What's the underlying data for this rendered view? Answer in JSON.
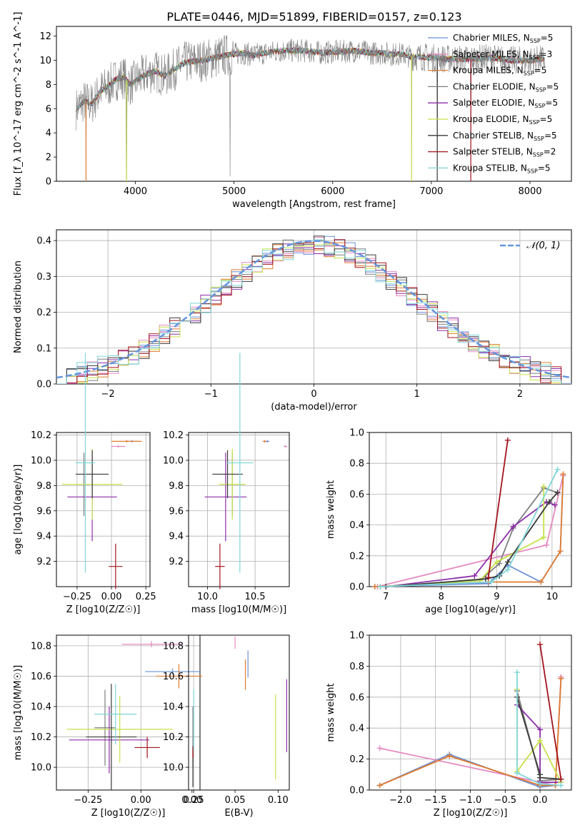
{
  "figure_title": "PLATE=0446, MJD=51899, FIBERID=0157, z=0.123",
  "palette": {
    "Chabrier MILES": "#6b8fd8",
    "Salpeter MILES": "#e58ac0",
    "Kroupa MILES": "#e07b2e",
    "Chabrier ELODIE": "#7f7f7f",
    "Salpeter ELODIE": "#8c2ea8",
    "Kroupa ELODIE": "#c5e24a",
    "Chabrier STELIB": "#3a3a3a",
    "Salpeter STELIB": "#a3131d",
    "Kroupa STELIB": "#7fd6d8",
    "normal_curve": "#6495dc",
    "grid": "#b0b0b0"
  },
  "chart_data": [
    {
      "type": "line",
      "panel": "spectrum",
      "xlabel": "wavelength [Angstrom, rest frame]",
      "ylabel": "Flux [f_λ 10^-17 erg cm^-2 s^-1 A^-1]",
      "xlim": [
        3200,
        8420
      ],
      "ylim": [
        0,
        12.8
      ],
      "xticks": [
        4000,
        5000,
        6000,
        7000,
        8000
      ],
      "yticks": [
        0,
        2,
        4,
        6,
        8,
        10,
        12
      ],
      "grid": false,
      "legend_position": "top-right",
      "legend": [
        {
          "main": "Chabrier MILES, N",
          "sub": "SSP",
          "tail": "=5"
        },
        {
          "main": "Salpeter MILES, N",
          "sub": "SSP",
          "tail": "=3"
        },
        {
          "main": "Kroupa MILES, N",
          "sub": "SSP",
          "tail": "=5"
        },
        {
          "main": "Chabrier ELODIE, N",
          "sub": "SSP",
          "tail": "=5"
        },
        {
          "main": "Salpeter ELODIE, N",
          "sub": "SSP",
          "tail": "=5"
        },
        {
          "main": "Kroupa ELODIE, N",
          "sub": "SSP",
          "tail": "=5"
        },
        {
          "main": "Chabrier STELIB, N",
          "sub": "SSP",
          "tail": "=5"
        },
        {
          "main": "Salpeter STELIB, N",
          "sub": "SSP",
          "tail": "=2"
        },
        {
          "main": "Kroupa STELIB, N",
          "sub": "SSP",
          "tail": "=5"
        }
      ],
      "continuum": [
        [
          3400,
          6.0
        ],
        [
          3480,
          6.6
        ],
        [
          3560,
          6.4
        ],
        [
          3650,
          7.5
        ],
        [
          3720,
          7.8
        ],
        [
          3800,
          8.4
        ],
        [
          3880,
          8.6
        ],
        [
          3950,
          8.0
        ],
        [
          4000,
          8.3
        ],
        [
          4100,
          8.8
        ],
        [
          4200,
          9.1
        ],
        [
          4300,
          8.7
        ],
        [
          4400,
          9.3
        ],
        [
          4500,
          9.8
        ],
        [
          4600,
          9.9
        ],
        [
          4700,
          10.0
        ],
        [
          4800,
          10.2
        ],
        [
          4900,
          10.4
        ],
        [
          5000,
          10.5
        ],
        [
          5100,
          10.6
        ],
        [
          5200,
          10.4
        ],
        [
          5300,
          10.6
        ],
        [
          5400,
          10.7
        ],
        [
          5500,
          10.8
        ],
        [
          5600,
          10.8
        ],
        [
          5700,
          10.8
        ],
        [
          5800,
          10.7
        ],
        [
          5900,
          10.6
        ],
        [
          6000,
          10.7
        ],
        [
          6100,
          10.7
        ],
        [
          6200,
          10.8
        ],
        [
          6300,
          10.7
        ],
        [
          6400,
          10.6
        ],
        [
          6500,
          10.6
        ],
        [
          6600,
          10.5
        ],
        [
          6700,
          10.5
        ],
        [
          6800,
          10.3
        ],
        [
          6900,
          10.3
        ],
        [
          7000,
          10.2
        ],
        [
          7200,
          10.1
        ],
        [
          7400,
          10.1
        ],
        [
          7600,
          10.2
        ],
        [
          7800,
          10.0
        ],
        [
          8000,
          10.0
        ],
        [
          8150,
          10.1
        ]
      ],
      "data_range": [
        3400,
        8150
      ],
      "deep_drops": [
        [
          3500,
          0
        ],
        [
          3910,
          0
        ],
        [
          4960,
          0.4
        ],
        [
          6800,
          0
        ],
        [
          7060,
          0
        ],
        [
          7400,
          0
        ]
      ]
    },
    {
      "type": "line",
      "panel": "residual-histogram",
      "xlabel": "(data-model)/error",
      "ylabel": "Normed distribution",
      "xlim": [
        -2.5,
        2.5
      ],
      "ylim": [
        0,
        0.43
      ],
      "xticks": [
        -2,
        -1,
        0,
        1,
        2
      ],
      "xtick_labels": [
        "−2",
        "−1",
        "0",
        "1",
        "2"
      ],
      "yticks": [
        0,
        0.1,
        0.2,
        0.3,
        0.4
      ],
      "ytick_labels": [
        "0.0",
        "0.1",
        "0.2",
        "0.3",
        "0.4"
      ],
      "grid": true,
      "legend_position": "top-right",
      "legend": [
        "𝒩(0, 1)"
      ],
      "normal_curve": {
        "mu": 0,
        "sigma": 1
      },
      "bin_width": 0.1,
      "bin_start": -2.5,
      "hist_bins": 50
    },
    {
      "type": "scatter",
      "panel": "age-vs-metallicity",
      "xlabel": "Z [log10(Z/Z☉)]",
      "ylabel": "age [log10(age/yr)]",
      "xlim": [
        -0.4,
        0.28
      ],
      "ylim": [
        9.0,
        10.22
      ],
      "xticks": [
        -0.25,
        0.0,
        0.25
      ],
      "xtick_labels": [
        "−0.25",
        "0.00",
        "0.25"
      ],
      "yticks": [
        9.2,
        9.4,
        9.6,
        9.8,
        10.0,
        10.2
      ],
      "ytick_labels": [
        "9.2",
        "9.4",
        "9.6",
        "9.8",
        "10.0",
        "10.2"
      ],
      "grid": true,
      "points": [
        {
          "model": "Chabrier MILES",
          "x": 0.15,
          "xerr": 0.04,
          "y": 10.15,
          "yerr": 0.01
        },
        {
          "model": "Salpeter MILES",
          "x": 0.05,
          "xerr": 0.05,
          "y": 10.11,
          "yerr": 0.01
        },
        {
          "model": "Kroupa MILES",
          "x": 0.11,
          "xerr": 0.11,
          "y": 10.15,
          "yerr": 0.01
        },
        {
          "model": "Chabrier ELODIE",
          "x": -0.2,
          "xerr": 0.04,
          "y": 9.81,
          "yerr": 0.25
        },
        {
          "model": "Salpeter ELODIE",
          "x": -0.14,
          "xerr": 0.18,
          "y": 9.71,
          "yerr": 0.35
        },
        {
          "model": "Kroupa ELODIE",
          "x": -0.14,
          "xerr": 0.22,
          "y": 9.81,
          "yerr": 0.28
        },
        {
          "model": "Chabrier STELIB",
          "x": -0.14,
          "xerr": 0.12,
          "y": 9.89,
          "yerr": 0.19
        },
        {
          "model": "Salpeter STELIB",
          "x": 0.03,
          "xerr": 0.05,
          "y": 9.16,
          "yerr": 0.18
        },
        {
          "model": "Kroupa STELIB",
          "x": -0.19,
          "xerr": 0.07,
          "y": 9.98,
          "yerr": 0.87
        }
      ]
    },
    {
      "type": "scatter",
      "panel": "age-vs-mass",
      "xlabel": "mass [log10(M/M☉)]",
      "ylabel": "",
      "xlim": [
        9.8,
        10.86
      ],
      "ylim": [
        9.0,
        10.22
      ],
      "xticks": [
        10.0,
        10.5
      ],
      "xtick_labels": [
        "10.0",
        "10.5"
      ],
      "yticks": [
        9.2,
        9.4,
        9.6,
        9.8,
        10.0,
        10.2
      ],
      "ytick_labels": [
        "9.2",
        "9.4",
        "9.6",
        "9.8",
        "10.0",
        "10.2"
      ],
      "grid": true,
      "points": [
        {
          "model": "Chabrier MILES",
          "x": 10.63,
          "xerr": 0.02,
          "y": 10.15,
          "yerr": 0.01
        },
        {
          "model": "Salpeter MILES",
          "x": 10.82,
          "xerr": 0.02,
          "y": 10.11,
          "yerr": 0.01
        },
        {
          "model": "Kroupa MILES",
          "x": 10.6,
          "xerr": 0.02,
          "y": 10.15,
          "yerr": 0.01
        },
        {
          "model": "Chabrier ELODIE",
          "x": 10.26,
          "xerr": 0.13,
          "y": 9.81,
          "yerr": 0.25
        },
        {
          "model": "Salpeter ELODIE",
          "x": 10.19,
          "xerr": 0.22,
          "y": 9.71,
          "yerr": 0.35
        },
        {
          "model": "Kroupa ELODIE",
          "x": 10.26,
          "xerr": 0.14,
          "y": 9.81,
          "yerr": 0.28
        },
        {
          "model": "Chabrier STELIB",
          "x": 10.21,
          "xerr": 0.16,
          "y": 9.89,
          "yerr": 0.19
        },
        {
          "model": "Salpeter STELIB",
          "x": 10.13,
          "xerr": 0.05,
          "y": 9.16,
          "yerr": 0.18
        },
        {
          "model": "Kroupa STELIB",
          "x": 10.34,
          "xerr": 0.14,
          "y": 9.98,
          "yerr": 0.87
        }
      ]
    },
    {
      "type": "line",
      "panel": "mass-weight-vs-age",
      "xlabel": "age [log10(age/yr)]",
      "ylabel": "mass weight",
      "xlim": [
        6.7,
        10.35
      ],
      "ylim": [
        0,
        1.0
      ],
      "xticks": [
        7,
        8,
        9,
        10
      ],
      "xtick_labels": [
        "7",
        "8",
        "9",
        "10"
      ],
      "yticks": [
        0,
        0.2,
        0.4,
        0.6,
        0.8,
        1.0
      ],
      "ytick_labels": [
        "0.0",
        "0.2",
        "0.4",
        "0.6",
        "0.8",
        "1.0"
      ],
      "grid": true,
      "series": [
        {
          "model": "Chabrier MILES",
          "x": [
            6.8,
            8.85,
            9.2,
            9.8,
            10.15,
            10.2
          ],
          "y": [
            0.0,
            0.02,
            0.14,
            0.03,
            0.23,
            0.72
          ]
        },
        {
          "model": "Salpeter MILES",
          "x": [
            6.85,
            9.9,
            10.2
          ],
          "y": [
            0.0,
            0.27,
            0.72
          ]
        },
        {
          "model": "Kroupa MILES",
          "x": [
            6.8,
            8.85,
            9.8,
            10.15,
            10.2
          ],
          "y": [
            0.0,
            0.03,
            0.03,
            0.23,
            0.73
          ]
        },
        {
          "model": "Chabrier ELODIE",
          "x": [
            6.9,
            8.7,
            9.05,
            9.3,
            9.85,
            10.1
          ],
          "y": [
            0.0,
            0.04,
            0.15,
            0.38,
            0.64,
            0.61
          ]
        },
        {
          "model": "Salpeter ELODIE",
          "x": [
            7.0,
            8.6,
            9.3,
            9.9,
            10.05
          ],
          "y": [
            0.0,
            0.07,
            0.39,
            0.55,
            0.53
          ]
        },
        {
          "model": "Kroupa ELODIE",
          "x": [
            6.9,
            8.7,
            9.0,
            9.85,
            9.85
          ],
          "y": [
            0.0,
            0.04,
            0.16,
            0.32,
            0.65
          ]
        },
        {
          "model": "Chabrier STELIB",
          "x": [
            7.0,
            8.8,
            9.05,
            9.2,
            9.95,
            10.1
          ],
          "y": [
            0.0,
            0.05,
            0.07,
            0.16,
            0.55,
            0.61
          ]
        },
        {
          "model": "Salpeter STELIB",
          "x": [
            8.85,
            9.2
          ],
          "y": [
            0.06,
            0.95
          ]
        },
        {
          "model": "Kroupa STELIB",
          "x": [
            6.9,
            8.9,
            9.2,
            10.1
          ],
          "y": [
            0.0,
            0.03,
            0.11,
            0.76
          ]
        }
      ]
    },
    {
      "type": "scatter",
      "panel": "mass-vs-metallicity",
      "xlabel": "Z [log10(Z/Z☉)]",
      "ylabel": "mass [log10(M/M☉)]",
      "xlim": [
        -0.4,
        0.28
      ],
      "ylim": [
        9.85,
        10.87
      ],
      "xticks": [
        -0.25,
        0.0,
        0.25
      ],
      "xtick_labels": [
        "−0.25",
        "0.00",
        "0.25"
      ],
      "yticks": [
        10.0,
        10.2,
        10.4,
        10.6,
        10.8
      ],
      "ytick_labels": [
        "10.0",
        "10.2",
        "10.4",
        "10.6",
        "10.8"
      ],
      "grid": true,
      "points": [
        {
          "model": "Chabrier MILES",
          "x": 0.15,
          "xerr": 0.13,
          "y": 10.63,
          "yerr": 0.02
        },
        {
          "model": "Salpeter MILES",
          "x": 0.05,
          "xerr": 0.14,
          "y": 10.81,
          "yerr": 0.02
        },
        {
          "model": "Kroupa MILES",
          "x": 0.18,
          "xerr": 0.11,
          "y": 10.6,
          "yerr": 0.08
        },
        {
          "model": "Chabrier ELODIE",
          "x": -0.17,
          "xerr": 0.05,
          "y": 10.26,
          "yerr": 0.25
        },
        {
          "model": "Salpeter ELODIE",
          "x": -0.15,
          "xerr": 0.19,
          "y": 10.18,
          "yerr": 0.22
        },
        {
          "model": "Kroupa ELODIE",
          "x": -0.1,
          "xerr": 0.25,
          "y": 10.25,
          "yerr": 0.22
        },
        {
          "model": "Chabrier STELIB",
          "x": -0.14,
          "xerr": 0.12,
          "y": 10.2,
          "yerr": 0.35
        },
        {
          "model": "Salpeter STELIB",
          "x": 0.03,
          "xerr": 0.06,
          "y": 10.13,
          "yerr": 0.07
        },
        {
          "model": "Kroupa STELIB",
          "x": -0.12,
          "xerr": 0.1,
          "y": 10.35,
          "yerr": 0.2
        }
      ]
    },
    {
      "type": "scatter",
      "panel": "mass-vs-extinction",
      "xlabel": "E(B-V)",
      "ylabel": "",
      "xlim": [
        -0.004,
        0.113
      ],
      "ylim": [
        9.85,
        10.87
      ],
      "xticks": [
        0.0,
        0.05,
        0.1
      ],
      "xtick_labels": [
        "0.00",
        "0.05",
        "0.10"
      ],
      "yticks": [
        10.0,
        10.2,
        10.4,
        10.6,
        10.8
      ],
      "ytick_labels": [
        "10.0",
        "10.2",
        "10.4",
        "10.6",
        "10.8"
      ],
      "grid": false,
      "points": [
        {
          "model": "Chabrier MILES",
          "x": 0.065,
          "xerr": 0.0,
          "y": 10.68,
          "yerr": 0.09
        },
        {
          "model": "Salpeter MILES",
          "x": 0.05,
          "xerr": 0.0,
          "y": 10.82,
          "yerr": 0.04
        },
        {
          "model": "Kroupa MILES",
          "x": 0.062,
          "xerr": 0.0,
          "y": 10.61,
          "yerr": 0.1
        },
        {
          "model": "Chabrier ELODIE",
          "x": 0.001,
          "xerr": 0.0,
          "y": 10.2,
          "yerr": 0.2
        },
        {
          "model": "Salpeter ELODIE",
          "x": 0.11,
          "xerr": 0.0,
          "y": 10.34,
          "yerr": 0.24
        },
        {
          "model": "Kroupa ELODIE",
          "x": 0.097,
          "xerr": 0.0,
          "y": 10.2,
          "yerr": 0.28
        },
        {
          "model": "Chabrier STELIB",
          "x": 0.001,
          "xerr": 0.0,
          "y": 10.0,
          "yerr": 0.13
        },
        {
          "model": "Salpeter STELIB",
          "x": 0.001,
          "xerr": 0.0,
          "y": 10.1,
          "yerr": 0.04
        },
        {
          "model": "Kroupa STELIB",
          "x": 0.002,
          "xerr": 0.0,
          "y": 10.31,
          "yerr": 0.2
        }
      ]
    },
    {
      "type": "line",
      "panel": "mass-weight-vs-metallicity",
      "xlabel": "Z [log10(Z/Z☉)]",
      "ylabel": "mass weight",
      "xlim": [
        -2.45,
        0.45
      ],
      "ylim": [
        0,
        1.0
      ],
      "xticks": [
        -2.0,
        -1.5,
        -1.0,
        -0.5,
        0.0
      ],
      "xtick_labels": [
        "−2.0",
        "−1.5",
        "−1.0",
        "−0.5",
        "0.0"
      ],
      "yticks": [
        0,
        0.2,
        0.4,
        0.6,
        0.8,
        1.0
      ],
      "ytick_labels": [
        "0.0",
        "0.2",
        "0.4",
        "0.6",
        "0.8",
        "1.0"
      ],
      "grid": true,
      "series": [
        {
          "model": "Chabrier MILES",
          "x": [
            -2.3,
            -1.3,
            0.0,
            0.22,
            0.3
          ],
          "y": [
            0.03,
            0.23,
            0.02,
            0.03,
            0.72
          ]
        },
        {
          "model": "Salpeter MILES",
          "x": [
            -2.3,
            0.22,
            0.3
          ],
          "y": [
            0.27,
            0.03,
            0.73
          ]
        },
        {
          "model": "Kroupa MILES",
          "x": [
            -2.3,
            -1.3,
            0.0,
            0.22,
            0.3
          ],
          "y": [
            0.03,
            0.22,
            0.03,
            0.03,
            0.72
          ]
        },
        {
          "model": "Chabrier ELODIE",
          "x": [
            -0.33,
            0.0,
            0.0,
            0.3
          ],
          "y": [
            0.64,
            0.08,
            0.06,
            0.07
          ]
        },
        {
          "model": "Salpeter ELODIE",
          "x": [
            -0.33,
            0.0,
            0.0,
            0.3
          ],
          "y": [
            0.55,
            0.39,
            0.05,
            0.05
          ]
        },
        {
          "model": "Kroupa ELODIE",
          "x": [
            -0.33,
            -0.33,
            0.0,
            0.3
          ],
          "y": [
            0.65,
            0.12,
            0.32,
            0.05
          ]
        },
        {
          "model": "Chabrier STELIB",
          "x": [
            -0.33,
            0.0,
            0.0,
            0.3
          ],
          "y": [
            0.6,
            0.1,
            0.08,
            0.07
          ]
        },
        {
          "model": "Salpeter STELIB",
          "x": [
            0.0,
            0.3
          ],
          "y": [
            0.94,
            0.07
          ]
        },
        {
          "model": "Kroupa STELIB",
          "x": [
            -0.33,
            -0.33,
            0.0,
            0.3
          ],
          "y": [
            0.76,
            0.11,
            0.04,
            0.03
          ]
        }
      ]
    }
  ]
}
